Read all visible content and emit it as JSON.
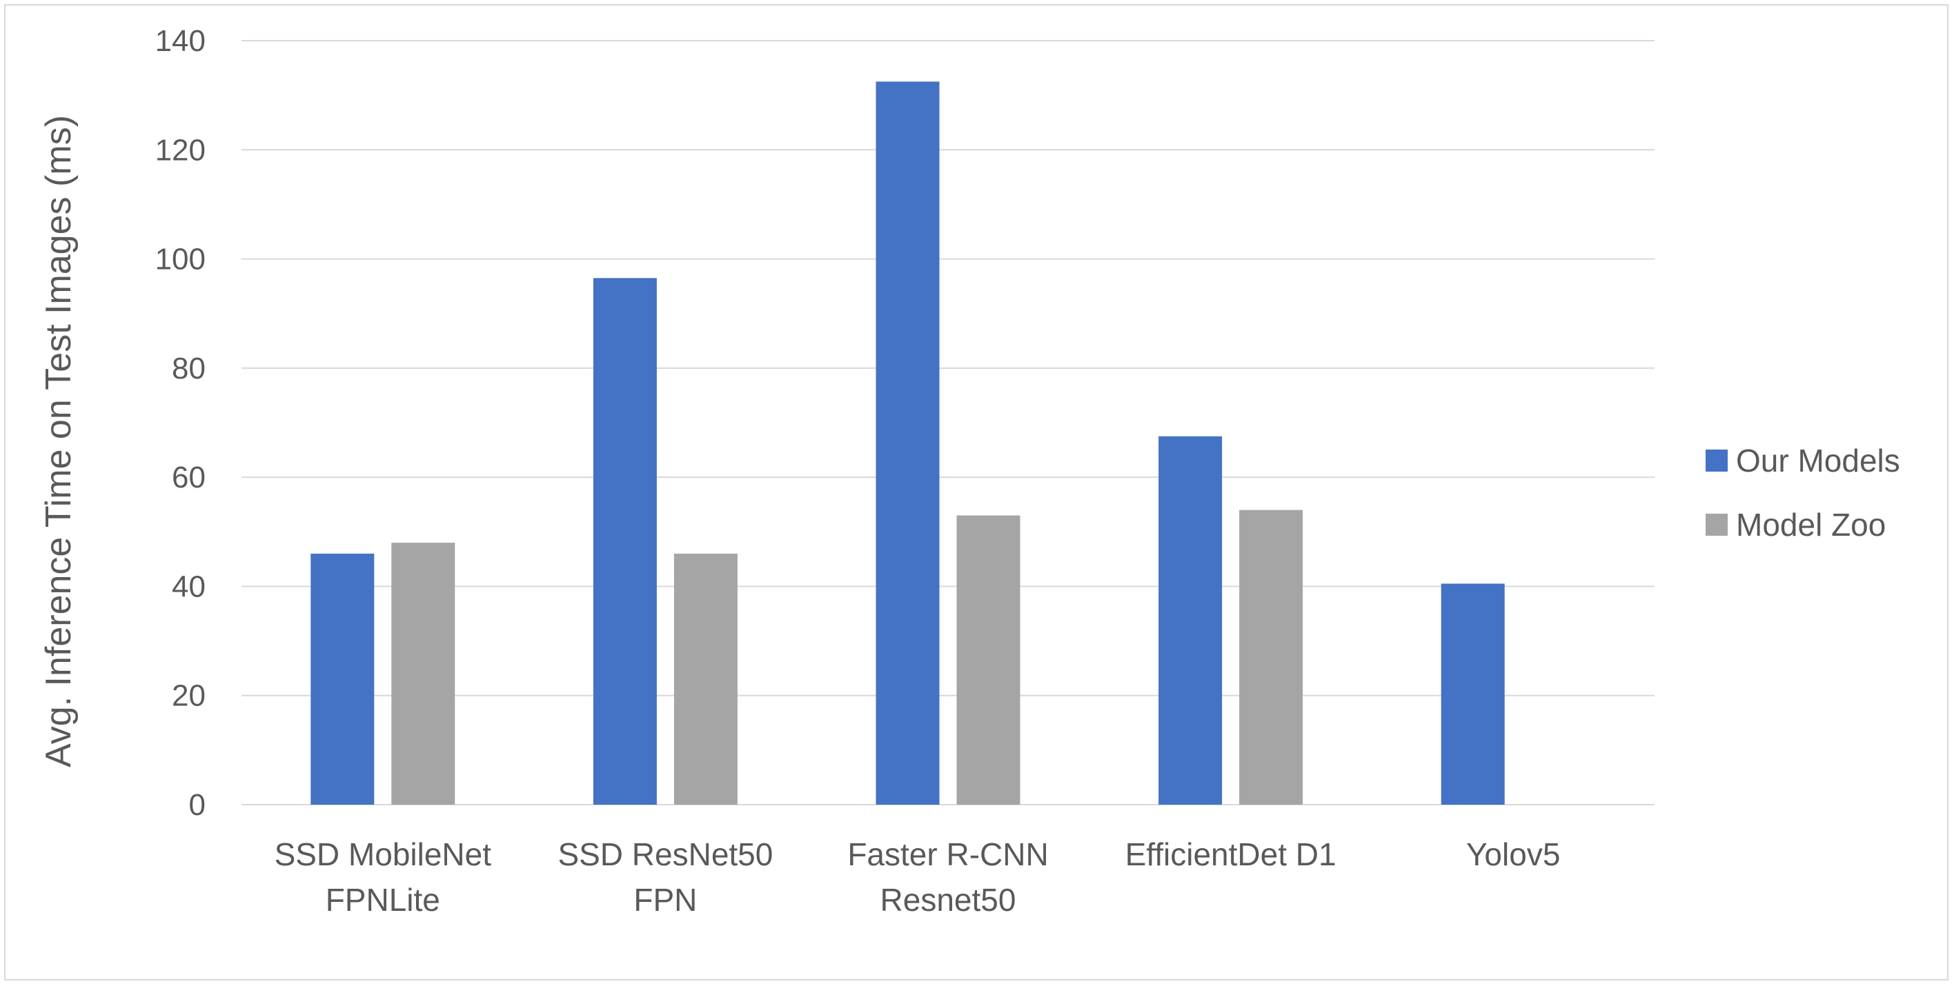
{
  "chart_data": {
    "type": "bar",
    "title": "",
    "xlabel": "",
    "ylabel": "Avg. Inference Time on Test Images (ms)",
    "ylim": [
      0,
      140
    ],
    "yticks": [
      0,
      20,
      40,
      60,
      80,
      100,
      120,
      140
    ],
    "grid": true,
    "legend_position": "right",
    "categories": [
      [
        "SSD MobileNet",
        "FPNLite"
      ],
      [
        "SSD ResNet50",
        "FPN"
      ],
      [
        "Faster R-CNN",
        "Resnet50"
      ],
      [
        "EfficientDet D1"
      ],
      [
        "Yolov5"
      ]
    ],
    "series": [
      {
        "name": "Our Models",
        "color": "#4472c4",
        "values": [
          46,
          96.5,
          132.5,
          67.5,
          40.5
        ]
      },
      {
        "name": "Model Zoo",
        "color": "#a5a5a5",
        "values": [
          48,
          46,
          53,
          54,
          null
        ]
      }
    ],
    "colors": {
      "grid": "#d9d9d9",
      "text": "#595959",
      "border": "#d9d9d9"
    }
  }
}
